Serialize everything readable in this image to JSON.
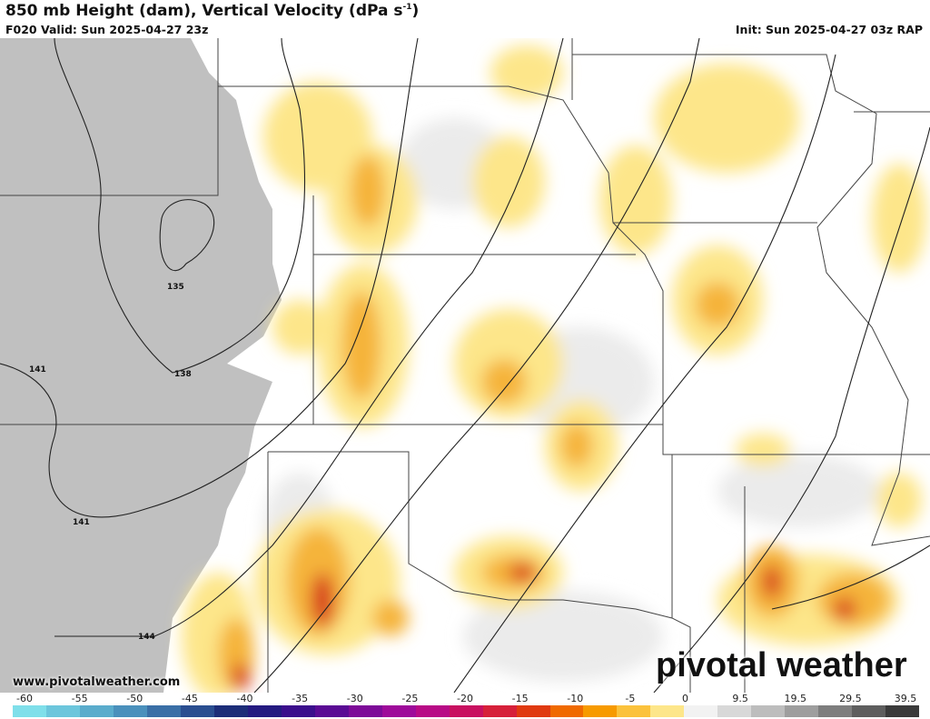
{
  "header": {
    "title": "850 mb Height (dam), Vertical Velocity (dPa s",
    "title_sup": "-1",
    "title_end": ")",
    "valid": "F020 Valid: Sun 2025-04-27 23z",
    "init": "Init: Sun 2025-04-27 03z RAP"
  },
  "map": {
    "contour_labels": [
      "135",
      "138",
      "141",
      "141",
      "144"
    ],
    "colors": {
      "terrain_mask": "#c0c0c0",
      "yellow": "#fde68a",
      "orange": "#f5a623",
      "red": "#d62f1f"
    }
  },
  "watermark": {
    "site": "www.pivotalweather.com",
    "logo": "pivotal weather"
  },
  "colorbar": {
    "labels": [
      "-60",
      "-55",
      "-50",
      "-45",
      "-40",
      "-35",
      "-30",
      "-25",
      "-20",
      "-15",
      "-10",
      "-5",
      "0",
      "9.5",
      "19.5",
      "29.5",
      "39.5"
    ],
    "colors": [
      "#7fdfea",
      "#6cc6dc",
      "#5aaccc",
      "#4a90bc",
      "#3a6fa6",
      "#2a4e90",
      "#1c2d78",
      "#241a80",
      "#3b0e8c",
      "#5a0a94",
      "#7d0a98",
      "#9e0a9a",
      "#b80a86",
      "#c81060",
      "#d6203a",
      "#e03a10",
      "#f06a00",
      "#f79a00",
      "#fbc23c",
      "#fde68a",
      "#f2f2f2",
      "#d8d8d8",
      "#bdbdbd",
      "#9e9e9e",
      "#7e7e7e",
      "#5e5e5e",
      "#3a3a3a"
    ]
  }
}
